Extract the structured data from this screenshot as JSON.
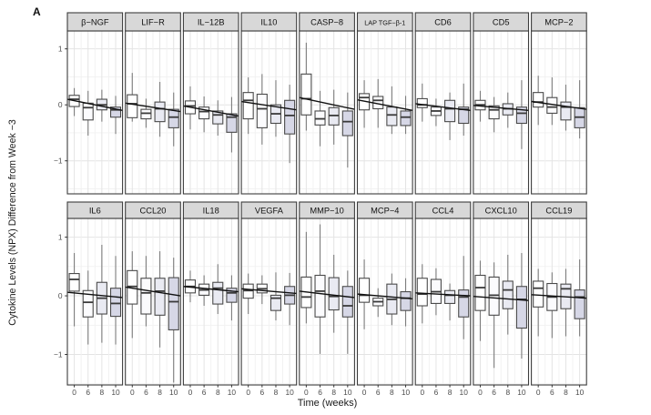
{
  "panel_label": "A",
  "chart_data": {
    "type": "boxplot",
    "title": "",
    "ylabel": "Cytokine Levels (NPX) Difference from Week −3",
    "xlabel": "Time (weeks)",
    "x_categories": [
      "0",
      "6",
      "8",
      "10"
    ],
    "y_ticks": [
      "1",
      "0",
      "−1"
    ],
    "y_tick_values": [
      1,
      0,
      -1
    ],
    "y_grid_minor": [
      0.5,
      -0.5,
      -1.5
    ],
    "legend": "none",
    "grid": "on",
    "box_value_order": [
      "whisker_low",
      "q1",
      "median",
      "q3",
      "whisker_high"
    ],
    "colors": {
      "box_fills": [
        "#ffffff",
        "#fbfbfd",
        "#e9eaf2",
        "#d6d7e6"
      ],
      "box_border": "#4a4a4a",
      "whisker": "#7d7d7d",
      "median": "#3a3a3a",
      "trend": "#111111",
      "strip_fill": "#d8d8d8",
      "strip_border": "#3c3c3c",
      "panel_border": "#3c3c3c",
      "grid_major": "#e4e4e4",
      "grid_minor": "#f1f1f1",
      "axis_text": "#4d4d4d",
      "axis_tick": "#333333"
    },
    "rows": [
      {
        "ylim": [
          -1.59,
          1.32
        ],
        "facets": [
          {
            "label": "β−NGF",
            "trend": [
              0.1,
              -0.1
            ],
            "boxes": [
              [
                -0.2,
                -0.03,
                0.1,
                0.17,
                0.3
              ],
              [
                -0.55,
                -0.27,
                -0.05,
                0.03,
                0.25
              ],
              [
                -0.3,
                -0.09,
                0.0,
                0.1,
                0.27
              ],
              [
                -0.52,
                -0.22,
                -0.09,
                -0.04,
                0.16
              ]
            ]
          },
          {
            "label": "LIF−R",
            "trend": [
              0.03,
              -0.12
            ],
            "boxes": [
              [
                -0.3,
                -0.23,
                0.02,
                0.18,
                0.57
              ],
              [
                -0.41,
                -0.25,
                -0.15,
                -0.08,
                0.11
              ],
              [
                -0.57,
                -0.3,
                -0.07,
                0.05,
                0.41
              ],
              [
                -0.74,
                -0.41,
                -0.22,
                -0.08,
                0.22
              ]
            ]
          },
          {
            "label": "IL−12B",
            "trend": [
              -0.02,
              -0.2
            ],
            "boxes": [
              [
                -0.44,
                -0.16,
                -0.02,
                0.07,
                0.33
              ],
              [
                -0.49,
                -0.25,
                -0.12,
                -0.04,
                0.15
              ],
              [
                -0.55,
                -0.34,
                -0.18,
                -0.11,
                0.08
              ],
              [
                -0.85,
                -0.49,
                -0.22,
                -0.16,
                0.14
              ]
            ]
          },
          {
            "label": "IL10",
            "trend": [
              0.06,
              -0.09
            ],
            "boxes": [
              [
                -0.52,
                -0.25,
                0.08,
                0.22,
                0.49
              ],
              [
                -0.71,
                -0.41,
                -0.07,
                0.19,
                0.55
              ],
              [
                -0.57,
                -0.33,
                -0.16,
                0.0,
                0.44
              ],
              [
                -1.04,
                -0.52,
                -0.19,
                0.08,
                0.36
              ]
            ]
          },
          {
            "label": "CASP−8",
            "trend": [
              0.13,
              -0.08
            ],
            "boxes": [
              [
                -0.46,
                -0.18,
                0.11,
                0.55,
                1.11
              ],
              [
                -0.74,
                -0.36,
                -0.25,
                -0.11,
                0.25
              ],
              [
                -0.71,
                -0.36,
                -0.19,
                -0.05,
                0.27
              ],
              [
                -1.12,
                -0.55,
                -0.3,
                -0.11,
                0.22
              ]
            ]
          },
          {
            "label": "LAP TGF−β-1",
            "trend": [
              0.09,
              -0.1
            ],
            "boxes": [
              [
                -0.41,
                -0.09,
                0.13,
                0.2,
                0.44
              ],
              [
                -0.41,
                -0.07,
                0.08,
                0.15,
                0.46
              ],
              [
                -0.52,
                -0.37,
                -0.18,
                -0.04,
                0.33
              ],
              [
                -0.52,
                -0.37,
                -0.22,
                -0.11,
                0.16
              ]
            ]
          },
          {
            "label": "CD6",
            "trend": [
              0.02,
              -0.1
            ],
            "boxes": [
              [
                -0.3,
                -0.05,
                0.0,
                0.11,
                0.38
              ],
              [
                -0.38,
                -0.19,
                -0.11,
                -0.04,
                0.11
              ],
              [
                -0.63,
                -0.3,
                -0.07,
                0.08,
                0.22
              ],
              [
                -0.55,
                -0.33,
                -0.08,
                -0.04,
                0.38
              ]
            ]
          },
          {
            "label": "CD5",
            "trend": [
              -0.01,
              -0.1
            ],
            "boxes": [
              [
                -0.3,
                -0.09,
                0.0,
                0.08,
                0.25
              ],
              [
                -0.49,
                -0.25,
                -0.09,
                -0.02,
                0.14
              ],
              [
                -0.41,
                -0.18,
                -0.07,
                0.02,
                0.22
              ],
              [
                -0.79,
                -0.33,
                -0.15,
                -0.04,
                0.44
              ]
            ]
          },
          {
            "label": "MCP−2",
            "trend": [
              0.06,
              -0.08
            ],
            "boxes": [
              [
                -0.36,
                -0.04,
                0.05,
                0.22,
                0.52
              ],
              [
                -0.36,
                -0.15,
                -0.04,
                0.13,
                0.49
              ],
              [
                -0.46,
                -0.27,
                -0.04,
                0.05,
                0.36
              ],
              [
                -0.6,
                -0.41,
                -0.22,
                -0.05,
                0.44
              ]
            ]
          }
        ]
      },
      {
        "ylim": [
          -1.52,
          1.32
        ],
        "facets": [
          {
            "label": "IL6",
            "trend": [
              0.06,
              -0.03
            ],
            "boxes": [
              [
                -0.52,
                0.08,
                0.28,
                0.38,
                0.73
              ],
              [
                -0.83,
                -0.36,
                -0.11,
                0.09,
                0.43
              ],
              [
                -0.8,
                -0.31,
                -0.04,
                0.23,
                0.87
              ],
              [
                -0.83,
                -0.35,
                -0.13,
                0.13,
                0.68
              ]
            ]
          },
          {
            "label": "CCL20",
            "trend": [
              0.15,
              0.0
            ],
            "boxes": [
              [
                -0.72,
                -0.14,
                0.16,
                0.43,
                0.76
              ],
              [
                -0.52,
                -0.31,
                0.05,
                0.3,
                0.68
              ],
              [
                -0.88,
                -0.33,
                0.08,
                0.3,
                0.76
              ],
              [
                -1.48,
                -0.58,
                -0.1,
                0.31,
                0.65
              ]
            ]
          },
          {
            "label": "IL18",
            "trend": [
              0.16,
              0.07
            ],
            "boxes": [
              [
                -0.11,
                0.05,
                0.16,
                0.27,
                0.43
              ],
              [
                -0.17,
                0.01,
                0.1,
                0.2,
                0.35
              ],
              [
                -0.31,
                -0.14,
                0.13,
                0.23,
                0.54
              ],
              [
                -0.42,
                -0.11,
                0.05,
                0.13,
                0.35
              ]
            ]
          },
          {
            "label": "VEGFA",
            "trend": [
              0.12,
              0.04
            ],
            "boxes": [
              [
                -0.31,
                -0.04,
                0.09,
                0.2,
                0.38
              ],
              [
                -0.14,
                0.05,
                0.12,
                0.2,
                0.35
              ],
              [
                -0.42,
                -0.25,
                -0.04,
                0.01,
                0.4
              ],
              [
                -0.5,
                -0.14,
                0.01,
                0.16,
                0.39
              ]
            ]
          },
          {
            "label": "MMP−10",
            "trend": [
              0.08,
              -0.03
            ],
            "boxes": [
              [
                -0.47,
                -0.2,
                -0.02,
                0.32,
                1.09
              ],
              [
                -0.99,
                -0.36,
                0.08,
                0.35,
                1.22
              ],
              [
                -0.63,
                -0.24,
                -0.01,
                0.31,
                0.7
              ],
              [
                -0.99,
                -0.36,
                -0.17,
                0.16,
                0.43
              ]
            ]
          },
          {
            "label": "MCP−4",
            "trend": [
              0.03,
              -0.05
            ],
            "boxes": [
              [
                -0.57,
                -0.11,
                0.01,
                0.3,
                0.62
              ],
              [
                -0.36,
                -0.17,
                -0.1,
                -0.04,
                0.13
              ],
              [
                -0.5,
                -0.31,
                -0.06,
                0.2,
                0.38
              ],
              [
                -0.52,
                -0.25,
                -0.04,
                0.07,
                0.3
              ]
            ]
          },
          {
            "label": "CCL4",
            "trend": [
              0.05,
              0.0
            ],
            "boxes": [
              [
                -0.47,
                -0.17,
                0.03,
                0.3,
                0.54
              ],
              [
                -0.33,
                -0.13,
                0.07,
                0.28,
                0.47
              ],
              [
                -0.42,
                -0.13,
                0.01,
                0.09,
                0.21
              ],
              [
                -0.74,
                -0.36,
                -0.02,
                0.1,
                0.68
              ]
            ]
          },
          {
            "label": "CXCL10",
            "trend": [
              -0.01,
              -0.08
            ],
            "boxes": [
              [
                -0.77,
                -0.25,
                0.14,
                0.35,
                0.6
              ],
              [
                -1.23,
                -0.33,
                0.01,
                0.32,
                0.57
              ],
              [
                -0.66,
                -0.22,
                0.1,
                0.25,
                0.7
              ],
              [
                -1.07,
                -0.55,
                -0.06,
                0.16,
                0.73
              ]
            ]
          },
          {
            "label": "CCL19",
            "trend": [
              0.02,
              -0.04
            ],
            "boxes": [
              [
                -0.69,
                -0.19,
                0.13,
                0.25,
                0.46
              ],
              [
                -0.72,
                -0.25,
                -0.02,
                0.21,
                0.4
              ],
              [
                -0.69,
                -0.22,
                0.12,
                0.2,
                0.46
              ],
              [
                -0.69,
                -0.39,
                -0.02,
                0.1,
                0.62
              ]
            ]
          }
        ]
      }
    ]
  }
}
